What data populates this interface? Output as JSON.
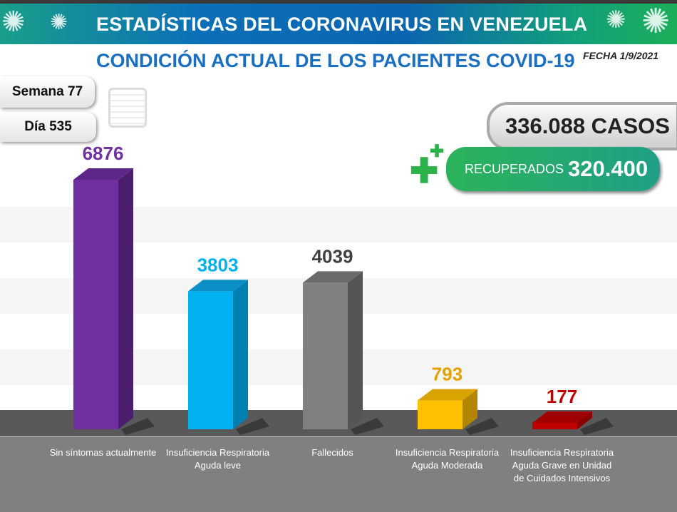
{
  "header": {
    "title": "ESTADÍSTICAS DEL CORONAVIRUS EN VENEZUELA"
  },
  "subtitle": "CONDICIÓN ACTUAL DE LOS PACIENTES COVID-19",
  "fecha": "FECHA 1/9/2021",
  "semana": "Semana 77",
  "dia": "Día 535",
  "casos": "336.088 CASOS",
  "recuperados": {
    "label": "RECUPERADOS",
    "value": "320.400"
  },
  "colors": {
    "purple": "#7030a0",
    "blue": "#00b0f0",
    "gray": "#808080",
    "yellow": "#ffc000",
    "red": "#c00000"
  },
  "chart_data": {
    "type": "bar",
    "categories": [
      "Sin síntomas actualmente",
      "Insuficiencia Respiratoria Aguda leve",
      "Fallecidos",
      "Insuficiencia Respiratoria Aguda Moderada",
      "Insuficiencia Respiratoria Aguda Grave en Unidad de Cuidados Intensivos"
    ],
    "values": [
      6876,
      3803,
      4039,
      793,
      177
    ],
    "labels": [
      "6876",
      "3803",
      "4039",
      "793",
      "177"
    ],
    "ylim": [
      0,
      6876
    ]
  }
}
